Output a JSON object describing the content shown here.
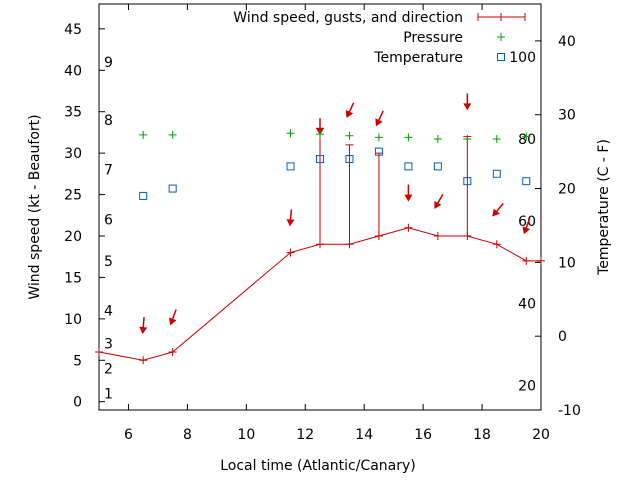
{
  "chart_data": {
    "type": "line",
    "title": "",
    "xlabel": "Local time (Atlantic/Canary)",
    "ylabel": "Wind speed (kt - Beaufort)",
    "y2label": "Temperature (C - F)",
    "xlim": [
      5,
      20
    ],
    "ylim": [
      -1,
      48
    ],
    "y2lim": [
      -10,
      45
    ],
    "x_ticks": [
      6,
      8,
      10,
      12,
      14,
      16,
      18,
      20
    ],
    "y_ticks": [
      0,
      5,
      10,
      15,
      20,
      25,
      30,
      35,
      40,
      45
    ],
    "y2_ticks": [
      -10,
      0,
      10,
      20,
      30,
      40
    ],
    "beaufort_labels": [
      {
        "label": "1",
        "y": 1
      },
      {
        "label": "2",
        "y": 4
      },
      {
        "label": "3",
        "y": 7
      },
      {
        "label": "4",
        "y": 11
      },
      {
        "label": "5",
        "y": 17
      },
      {
        "label": "6",
        "y": 22
      },
      {
        "label": "7",
        "y": 28
      },
      {
        "label": "8",
        "y": 34
      },
      {
        "label": "9",
        "y": 41
      }
    ],
    "fahrenheit_labels": [
      {
        "label": "20",
        "y2": -6.7
      },
      {
        "label": "40",
        "y2": 4.4
      },
      {
        "label": "60",
        "y2": 15.6
      },
      {
        "label": "80",
        "y2": 26.7
      },
      {
        "label": "100",
        "y2": 37.8
      }
    ],
    "legend": [
      {
        "name": "Wind speed, gusts, and direction",
        "color": "#cc0000",
        "marker": "line-plus"
      },
      {
        "name": "Pressure",
        "color": "#00a000",
        "marker": "plus"
      },
      {
        "name": "Temperature",
        "color": "#0060c0",
        "marker": "square"
      }
    ],
    "legend_position": "top-right",
    "series": [
      {
        "name": "Wind speed",
        "x": [
          5,
          6.5,
          7.5,
          11.5,
          12.5,
          13.5,
          14.5,
          15.5,
          16.5,
          17.5,
          18.5,
          19.5,
          20
        ],
        "values": [
          6,
          5,
          6,
          18,
          19,
          19,
          20,
          21,
          20,
          20,
          19,
          17,
          17
        ]
      },
      {
        "name": "Gusts",
        "x": [
          12.5,
          13.5,
          14.5,
          17.5
        ],
        "base": [
          19,
          19,
          20,
          20
        ],
        "values": [
          33,
          31,
          30,
          32
        ]
      },
      {
        "name": "Wind direction arrows",
        "x": [
          6.5,
          7.5,
          11.5,
          12.5,
          13.5,
          14.5,
          15.5,
          16.5,
          17.5,
          18.5,
          19.5
        ],
        "values": [
          9,
          10,
          22,
          33,
          35,
          34,
          25,
          24,
          36,
          23,
          21
        ],
        "angle_deg": [
          5,
          20,
          5,
          0,
          25,
          25,
          0,
          30,
          0,
          40,
          20
        ]
      },
      {
        "name": "Pressure",
        "x": [
          6.5,
          7.5,
          11.5,
          12.5,
          13.5,
          14.5,
          15.5,
          16.5,
          17.5,
          18.5,
          19.5
        ],
        "values": [
          32.2,
          32.2,
          32.4,
          32.3,
          32.1,
          31.9,
          31.9,
          31.7,
          31.7,
          31.7,
          32
        ]
      },
      {
        "name": "Temperature",
        "x": [
          6.5,
          7.5,
          11.5,
          12.5,
          13.5,
          14.5,
          15.5,
          16.5,
          17.5,
          18.5,
          19.5
        ],
        "values": [
          19,
          20,
          23,
          24,
          24,
          25,
          23,
          23,
          21,
          22,
          21
        ]
      }
    ]
  }
}
